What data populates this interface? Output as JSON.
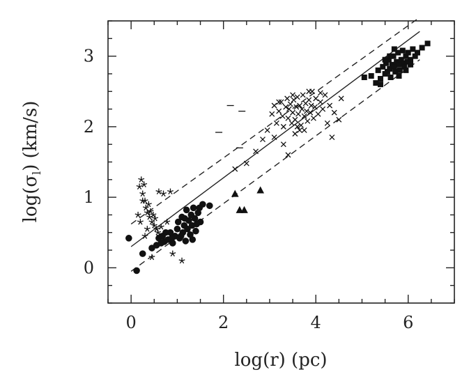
{
  "chart_data": {
    "type": "scatter",
    "xlabel": "log(r)  (pc)",
    "ylabel_main": "log(σ",
    "ylabel_sub": "l",
    "ylabel_tail": ")  (km/s)",
    "xlim": [
      -0.5,
      7.0
    ],
    "ylim": [
      -0.5,
      3.5
    ],
    "x_ticks_major": [
      0,
      2,
      4,
      6
    ],
    "y_ticks_major": [
      0,
      1,
      2,
      3
    ],
    "x_ticks_minor_step": 0.5,
    "y_ticks_minor_step": 0.25,
    "grid": false,
    "fit_lines": [
      {
        "style": "solid",
        "x": [
          0.0,
          6.25
        ],
        "y": [
          0.3,
          3.35
        ]
      },
      {
        "style": "dashed",
        "x": [
          0.0,
          6.25
        ],
        "y": [
          0.62,
          3.55
        ]
      },
      {
        "style": "dashed",
        "x": [
          0.0,
          6.25
        ],
        "y": [
          -0.05,
          2.95
        ]
      }
    ],
    "series": [
      {
        "marker": "circle",
        "points": [
          [
            -0.05,
            0.42
          ],
          [
            0.12,
            -0.04
          ],
          [
            0.25,
            0.2
          ],
          [
            0.45,
            0.28
          ],
          [
            0.55,
            0.32
          ],
          [
            0.6,
            0.42
          ],
          [
            0.68,
            0.45
          ],
          [
            0.72,
            0.37
          ],
          [
            0.8,
            0.4
          ],
          [
            0.85,
            0.5
          ],
          [
            0.9,
            0.35
          ],
          [
            0.95,
            0.45
          ],
          [
            1.0,
            0.55
          ],
          [
            1.02,
            0.65
          ],
          [
            1.05,
            0.42
          ],
          [
            1.1,
            0.72
          ],
          [
            1.12,
            0.5
          ],
          [
            1.15,
            0.6
          ],
          [
            1.18,
            0.38
          ],
          [
            1.2,
            0.82
          ],
          [
            1.22,
            0.55
          ],
          [
            1.25,
            0.67
          ],
          [
            1.28,
            0.47
          ],
          [
            1.3,
            0.75
          ],
          [
            1.32,
            0.6
          ],
          [
            1.35,
            0.85
          ],
          [
            1.38,
            0.7
          ],
          [
            1.4,
            0.52
          ],
          [
            1.45,
            0.78
          ],
          [
            1.5,
            0.65
          ],
          [
            1.55,
            0.9
          ],
          [
            1.7,
            0.88
          ],
          [
            0.65,
            0.35
          ],
          [
            0.75,
            0.5
          ],
          [
            0.88,
            0.42
          ],
          [
            1.08,
            0.45
          ],
          [
            1.16,
            0.7
          ],
          [
            1.42,
            0.62
          ],
          [
            1.33,
            0.4
          ],
          [
            1.48,
            0.85
          ]
        ]
      },
      {
        "marker": "star",
        "points": [
          [
            0.18,
            1.15
          ],
          [
            0.22,
            1.25
          ],
          [
            0.25,
            1.05
          ],
          [
            0.28,
            1.18
          ],
          [
            0.3,
            0.95
          ],
          [
            0.32,
            0.85
          ],
          [
            0.35,
            0.78
          ],
          [
            0.38,
            0.9
          ],
          [
            0.4,
            0.72
          ],
          [
            0.42,
            0.8
          ],
          [
            0.45,
            0.65
          ],
          [
            0.48,
            0.75
          ],
          [
            0.5,
            0.6
          ],
          [
            0.52,
            0.7
          ],
          [
            0.55,
            0.55
          ],
          [
            0.58,
            0.5
          ],
          [
            0.6,
            1.08
          ],
          [
            0.62,
            0.45
          ],
          [
            0.65,
            0.58
          ],
          [
            0.7,
            1.05
          ],
          [
            0.78,
            0.65
          ],
          [
            0.85,
            1.08
          ],
          [
            0.2,
            0.65
          ],
          [
            0.15,
            0.75
          ],
          [
            0.3,
            0.45
          ],
          [
            0.45,
            0.15
          ],
          [
            0.9,
            0.2
          ],
          [
            1.1,
            0.1
          ],
          [
            0.25,
            0.95
          ],
          [
            0.35,
            0.55
          ]
        ]
      },
      {
        "marker": "cross",
        "points": [
          [
            2.25,
            1.4
          ],
          [
            2.5,
            1.48
          ],
          [
            2.7,
            1.65
          ],
          [
            2.85,
            1.82
          ],
          [
            2.95,
            1.95
          ],
          [
            3.05,
            2.18
          ],
          [
            3.1,
            2.3
          ],
          [
            3.15,
            2.05
          ],
          [
            3.2,
            2.22
          ],
          [
            3.25,
            2.35
          ],
          [
            3.28,
            2.15
          ],
          [
            3.3,
            2.0
          ],
          [
            3.35,
            2.28
          ],
          [
            3.38,
            2.4
          ],
          [
            3.4,
            2.12
          ],
          [
            3.42,
            2.25
          ],
          [
            3.45,
            2.32
          ],
          [
            3.48,
            2.05
          ],
          [
            3.5,
            2.2
          ],
          [
            3.52,
            2.38
          ],
          [
            3.55,
            2.1
          ],
          [
            3.58,
            2.28
          ],
          [
            3.6,
            2.42
          ],
          [
            3.62,
            2.18
          ],
          [
            3.65,
            2.3
          ],
          [
            3.68,
            2.02
          ],
          [
            3.7,
            2.25
          ],
          [
            3.72,
            2.45
          ],
          [
            3.75,
            2.15
          ],
          [
            3.78,
            2.33
          ],
          [
            3.8,
            2.22
          ],
          [
            3.82,
            2.08
          ],
          [
            3.85,
            2.38
          ],
          [
            3.88,
            2.2
          ],
          [
            3.9,
            2.3
          ],
          [
            3.92,
            2.5
          ],
          [
            3.95,
            2.12
          ],
          [
            3.98,
            2.28
          ],
          [
            4.0,
            2.4
          ],
          [
            4.05,
            2.18
          ],
          [
            4.1,
            2.35
          ],
          [
            4.15,
            2.25
          ],
          [
            4.2,
            2.45
          ],
          [
            4.25,
            2.05
          ],
          [
            4.3,
            2.3
          ],
          [
            4.4,
            2.2
          ],
          [
            4.5,
            2.1
          ],
          [
            3.1,
            1.85
          ],
          [
            3.3,
            1.75
          ],
          [
            3.55,
            1.9
          ],
          [
            3.75,
            1.95
          ],
          [
            4.35,
            1.85
          ],
          [
            3.4,
            1.6
          ],
          [
            3.65,
            1.95
          ],
          [
            4.55,
            2.4
          ],
          [
            3.2,
            2.35
          ],
          [
            3.5,
            2.45
          ],
          [
            3.85,
            2.5
          ],
          [
            4.1,
            2.48
          ],
          [
            3.6,
            2.0
          ]
        ]
      },
      {
        "marker": "square",
        "points": [
          [
            5.05,
            2.7
          ],
          [
            5.2,
            2.72
          ],
          [
            5.3,
            2.62
          ],
          [
            5.35,
            2.8
          ],
          [
            5.4,
            2.68
          ],
          [
            5.45,
            2.85
          ],
          [
            5.5,
            2.75
          ],
          [
            5.52,
            2.9
          ],
          [
            5.55,
            2.78
          ],
          [
            5.58,
            2.95
          ],
          [
            5.6,
            2.82
          ],
          [
            5.62,
            2.7
          ],
          [
            5.65,
            2.88
          ],
          [
            5.68,
            3.0
          ],
          [
            5.7,
            2.85
          ],
          [
            5.72,
            2.78
          ],
          [
            5.75,
            2.92
          ],
          [
            5.78,
            3.05
          ],
          [
            5.8,
            2.88
          ],
          [
            5.82,
            2.8
          ],
          [
            5.85,
            2.95
          ],
          [
            5.88,
            3.08
          ],
          [
            5.9,
            2.9
          ],
          [
            5.92,
            2.85
          ],
          [
            5.95,
            3.0
          ],
          [
            5.98,
            2.92
          ],
          [
            6.0,
            3.05
          ],
          [
            6.05,
            2.95
          ],
          [
            6.1,
            3.1
          ],
          [
            6.15,
            3.0
          ],
          [
            6.2,
            3.05
          ],
          [
            6.3,
            3.12
          ],
          [
            6.42,
            3.18
          ],
          [
            5.6,
            3.0
          ],
          [
            5.7,
            3.1
          ],
          [
            5.5,
            2.95
          ],
          [
            5.8,
            2.72
          ],
          [
            5.95,
            2.8
          ],
          [
            6.05,
            2.88
          ],
          [
            5.4,
            2.6
          ]
        ]
      },
      {
        "marker": "dash",
        "points": [
          [
            2.15,
            2.3
          ],
          [
            2.4,
            2.22
          ],
          [
            1.9,
            1.92
          ],
          [
            2.35,
            1.7
          ]
        ]
      },
      {
        "marker": "triangle",
        "points": [
          [
            2.25,
            1.05
          ],
          [
            2.35,
            0.82
          ],
          [
            2.45,
            0.82
          ],
          [
            2.8,
            1.1
          ]
        ]
      }
    ]
  }
}
